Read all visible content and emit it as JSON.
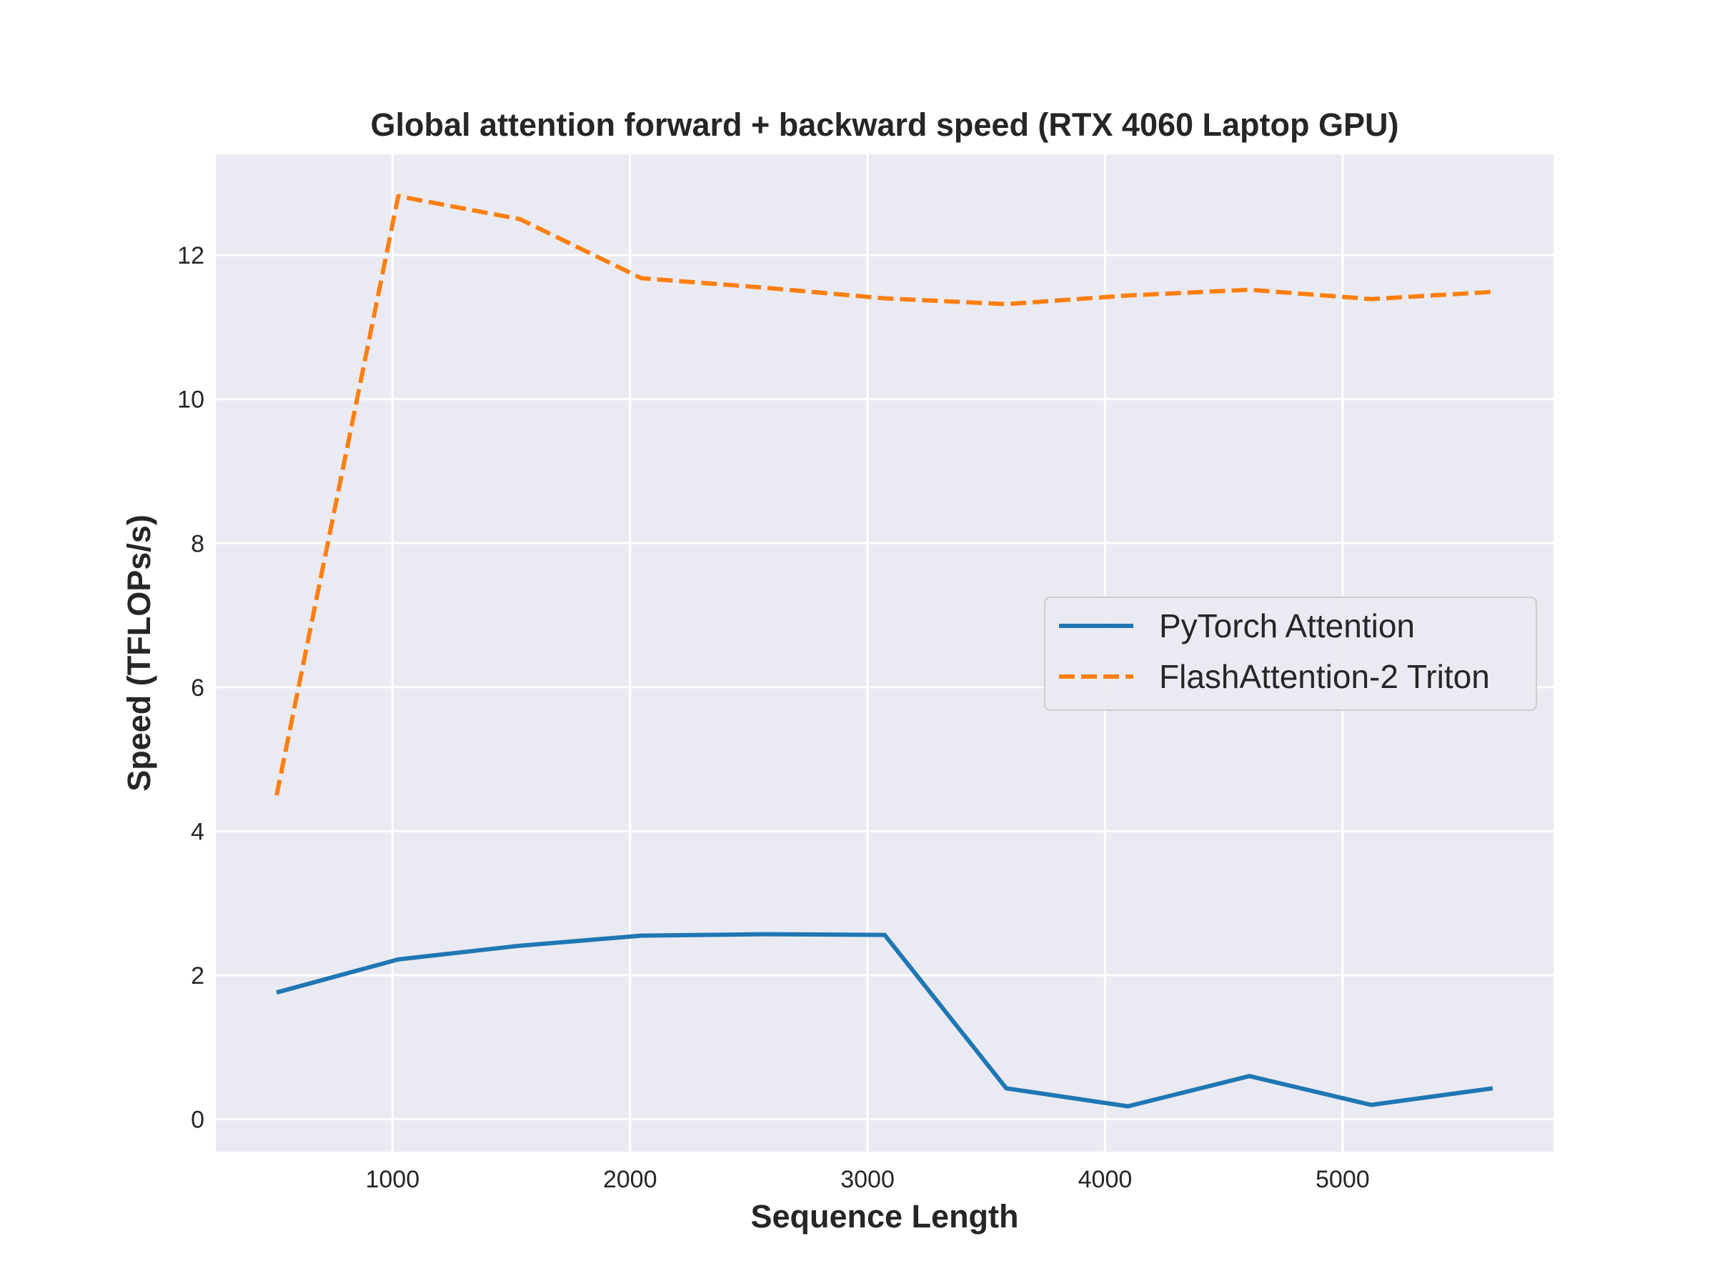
{
  "chart_data": {
    "type": "line",
    "title": "Global attention forward + backward speed (RTX 4060 Laptop GPU)",
    "xlabel": "Sequence Length",
    "ylabel": "Speed (TFLOPs/s)",
    "xlim": [
      256,
      5888
    ],
    "ylim": [
      -0.45,
      13.4
    ],
    "xticks": [
      1000,
      2000,
      3000,
      4000,
      5000
    ],
    "yticks": [
      0,
      2,
      4,
      6,
      8,
      10,
      12
    ],
    "xtick_labels": [
      "1000",
      "2000",
      "3000",
      "4000",
      "5000"
    ],
    "ytick_labels": [
      "0",
      "2",
      "4",
      "6",
      "8",
      "10",
      "12"
    ],
    "grid": true,
    "background": "#eaeaf2",
    "legend_position": "center-right",
    "x": [
      512,
      1024,
      1536,
      2048,
      2560,
      3072,
      3584,
      4096,
      4608,
      5120,
      5632
    ],
    "series": [
      {
        "name": "PyTorch Attention",
        "color": "#1f77b4",
        "style": "solid",
        "values": [
          1.76,
          2.22,
          2.41,
          2.55,
          2.57,
          2.56,
          0.43,
          0.18,
          0.6,
          0.2,
          0.43
        ]
      },
      {
        "name": "FlashAttention-2 Triton",
        "color": "#ff7f0e",
        "style": "dashed",
        "values": [
          4.5,
          12.82,
          12.5,
          11.68,
          11.55,
          11.4,
          11.32,
          11.44,
          11.52,
          11.39,
          11.49
        ]
      }
    ]
  }
}
